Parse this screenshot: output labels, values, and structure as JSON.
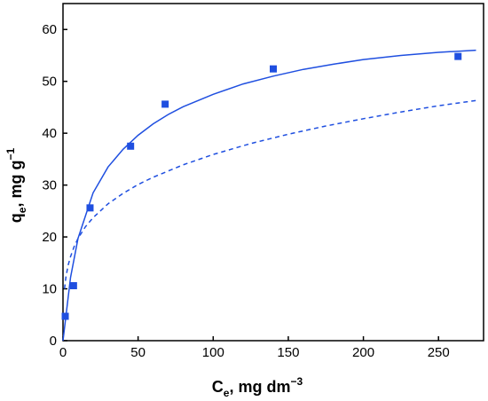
{
  "chart_data": {
    "type": "scatter",
    "xlabel": {
      "main": "C",
      "sub": "e",
      "rest": ", mg dm",
      "sup": "−3"
    },
    "ylabel": {
      "main": "q",
      "sub": "e",
      "rest": ", mg g",
      "sup": "−1"
    },
    "xlim": [
      0,
      280
    ],
    "ylim": [
      0,
      65
    ],
    "xticks": [
      0,
      50,
      100,
      150,
      200,
      250
    ],
    "yticks": [
      0,
      10,
      20,
      30,
      40,
      50,
      60
    ],
    "grid": false,
    "colors": {
      "series": "#1f4fe0",
      "axis": "#000000"
    },
    "points": {
      "marker": "square",
      "x": [
        1.5,
        7,
        18,
        45,
        68,
        140,
        263
      ],
      "y": [
        4.7,
        10.6,
        25.6,
        37.5,
        45.6,
        52.4,
        54.8
      ]
    },
    "series": [
      {
        "style": "solid",
        "x": [
          0,
          5,
          10,
          20,
          30,
          40,
          50,
          60,
          70,
          80,
          100,
          120,
          140,
          160,
          180,
          200,
          225,
          250,
          275
        ],
        "y": [
          0,
          12.2,
          19.7,
          28.5,
          33.5,
          36.9,
          39.6,
          41.8,
          43.6,
          45.1,
          47.5,
          49.5,
          51.0,
          52.3,
          53.3,
          54.2,
          55.0,
          55.6,
          56.0
        ]
      },
      {
        "style": "dashed",
        "x": [
          1,
          2,
          3.5,
          5,
          7.5,
          10,
          15,
          20,
          30,
          40,
          50,
          60,
          80,
          100,
          125,
          150,
          175,
          200,
          225,
          250,
          275
        ],
        "y": [
          10.0,
          12.4,
          14.6,
          16.2,
          18.2,
          19.7,
          22.0,
          23.7,
          26.4,
          28.4,
          30.1,
          31.5,
          33.9,
          35.9,
          38.0,
          39.8,
          41.4,
          42.8,
          44.1,
          45.3,
          46.3
        ]
      }
    ]
  }
}
